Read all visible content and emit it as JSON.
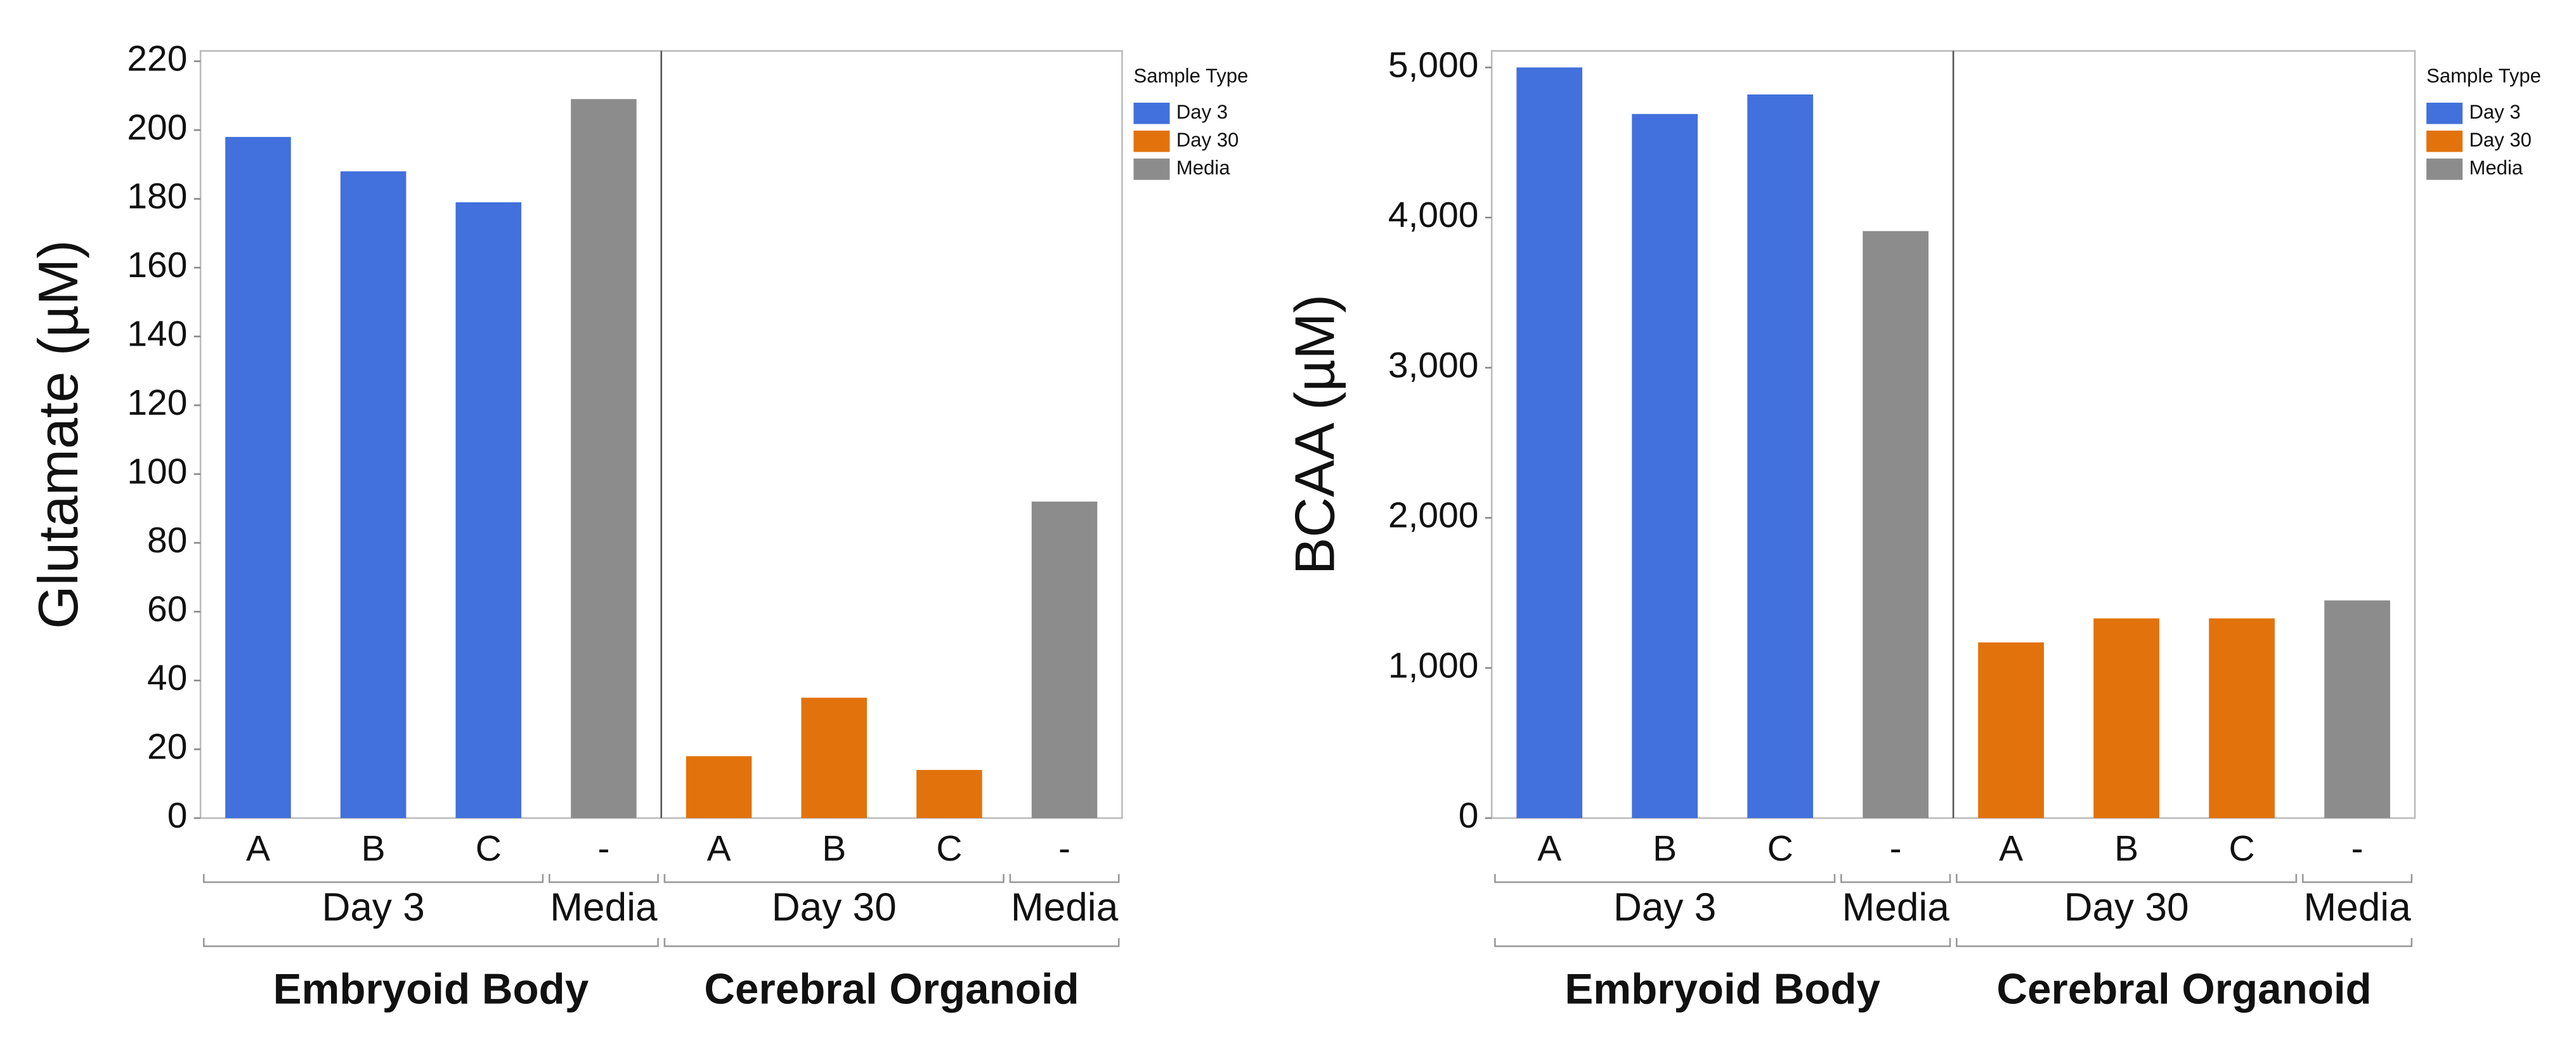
{
  "chart_data": [
    {
      "type": "bar",
      "y_label": "Glutamate (µM)",
      "ylim": [
        0,
        223
      ],
      "yticks": [
        0,
        20,
        40,
        60,
        80,
        100,
        120,
        140,
        160,
        180,
        200,
        220
      ],
      "legend": {
        "title": "Sample Type",
        "entries": [
          {
            "name": "Day 3",
            "color": "#4270dc"
          },
          {
            "name": "Day 30",
            "color": "#e2720c"
          },
          {
            "name": "Media",
            "color": "#8c8c8c"
          }
        ]
      },
      "groups": [
        {
          "label": "Embryoid Body",
          "subgroups": [
            {
              "label": "Day 3",
              "color": "#4270dc",
              "categories": [
                "A",
                "B",
                "C"
              ],
              "values": [
                198,
                188,
                179
              ]
            },
            {
              "label": "Media",
              "color": "#8c8c8c",
              "categories": [
                "-"
              ],
              "values": [
                209
              ]
            }
          ]
        },
        {
          "label": "Cerebral Organoid",
          "subgroups": [
            {
              "label": "Day 30",
              "color": "#e2720c",
              "categories": [
                "A",
                "B",
                "C"
              ],
              "values": [
                18,
                35,
                14
              ]
            },
            {
              "label": "Media",
              "color": "#8c8c8c",
              "categories": [
                "-"
              ],
              "values": [
                92
              ]
            }
          ]
        }
      ]
    },
    {
      "type": "bar",
      "y_label": "BCAA (µM)",
      "ylim": [
        0,
        5110
      ],
      "yticks": [
        0,
        {
          "value": 1000,
          "label": "1,000"
        },
        {
          "value": 2000,
          "label": "2,000"
        },
        {
          "value": 3000,
          "label": "3,000"
        },
        {
          "value": 4000,
          "label": "4,000"
        },
        {
          "value": 5000,
          "label": "5,000"
        }
      ],
      "legend": {
        "title": "Sample Type",
        "entries": [
          {
            "name": "Day 3",
            "color": "#4270dc"
          },
          {
            "name": "Day 30",
            "color": "#e2720c"
          },
          {
            "name": "Media",
            "color": "#8c8c8c"
          }
        ]
      },
      "groups": [
        {
          "label": "Embryoid Body",
          "subgroups": [
            {
              "label": "Day 3",
              "color": "#4270dc",
              "categories": [
                "A",
                "B",
                "C"
              ],
              "values": [
                5000,
                4690,
                4820
              ]
            },
            {
              "label": "Media",
              "color": "#8c8c8c",
              "categories": [
                "-"
              ],
              "values": [
                3910
              ]
            }
          ]
        },
        {
          "label": "Cerebral Organoid",
          "subgroups": [
            {
              "label": "Day 30",
              "color": "#e2720c",
              "categories": [
                "A",
                "B",
                "C"
              ],
              "values": [
                1170,
                1330,
                1330
              ]
            },
            {
              "label": "Media",
              "color": "#8c8c8c",
              "categories": [
                "-"
              ],
              "values": [
                1450
              ]
            }
          ]
        }
      ]
    }
  ]
}
